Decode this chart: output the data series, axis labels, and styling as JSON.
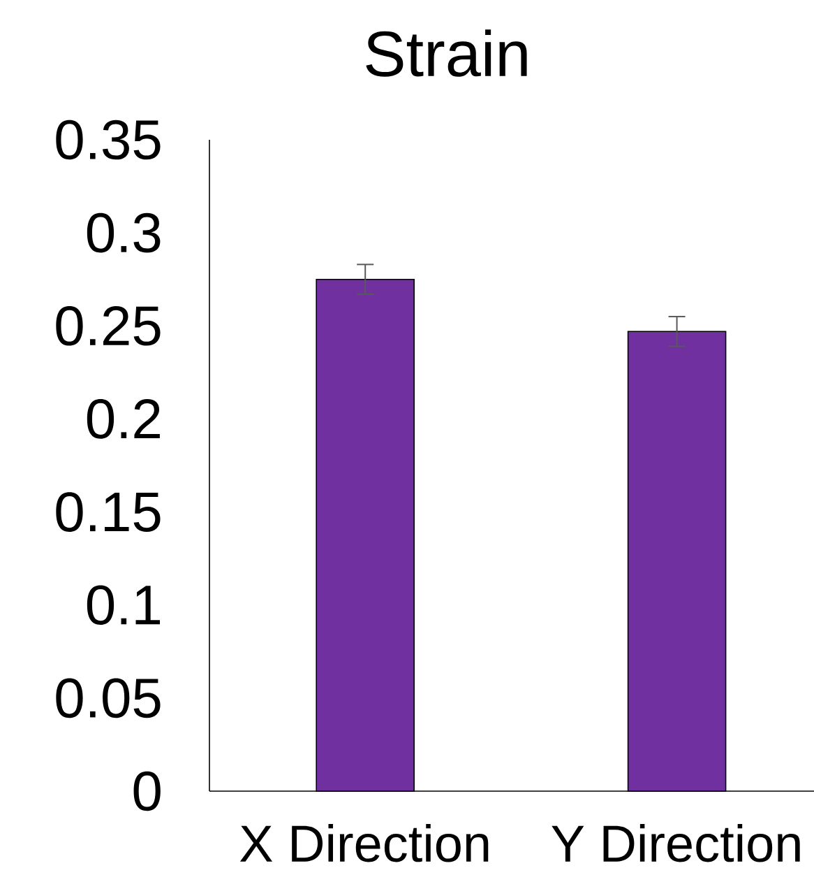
{
  "chart_data": {
    "type": "bar",
    "title": "Strain",
    "categories": [
      "X Direction",
      "Y Direction"
    ],
    "values": [
      0.275,
      0.247
    ],
    "errors": [
      0.008,
      0.008
    ],
    "color": "#7030a0",
    "ylim": [
      0,
      0.35
    ],
    "yticks": [
      0,
      0.05,
      0.1,
      0.15,
      0.2,
      0.25,
      0.3,
      0.35
    ]
  }
}
